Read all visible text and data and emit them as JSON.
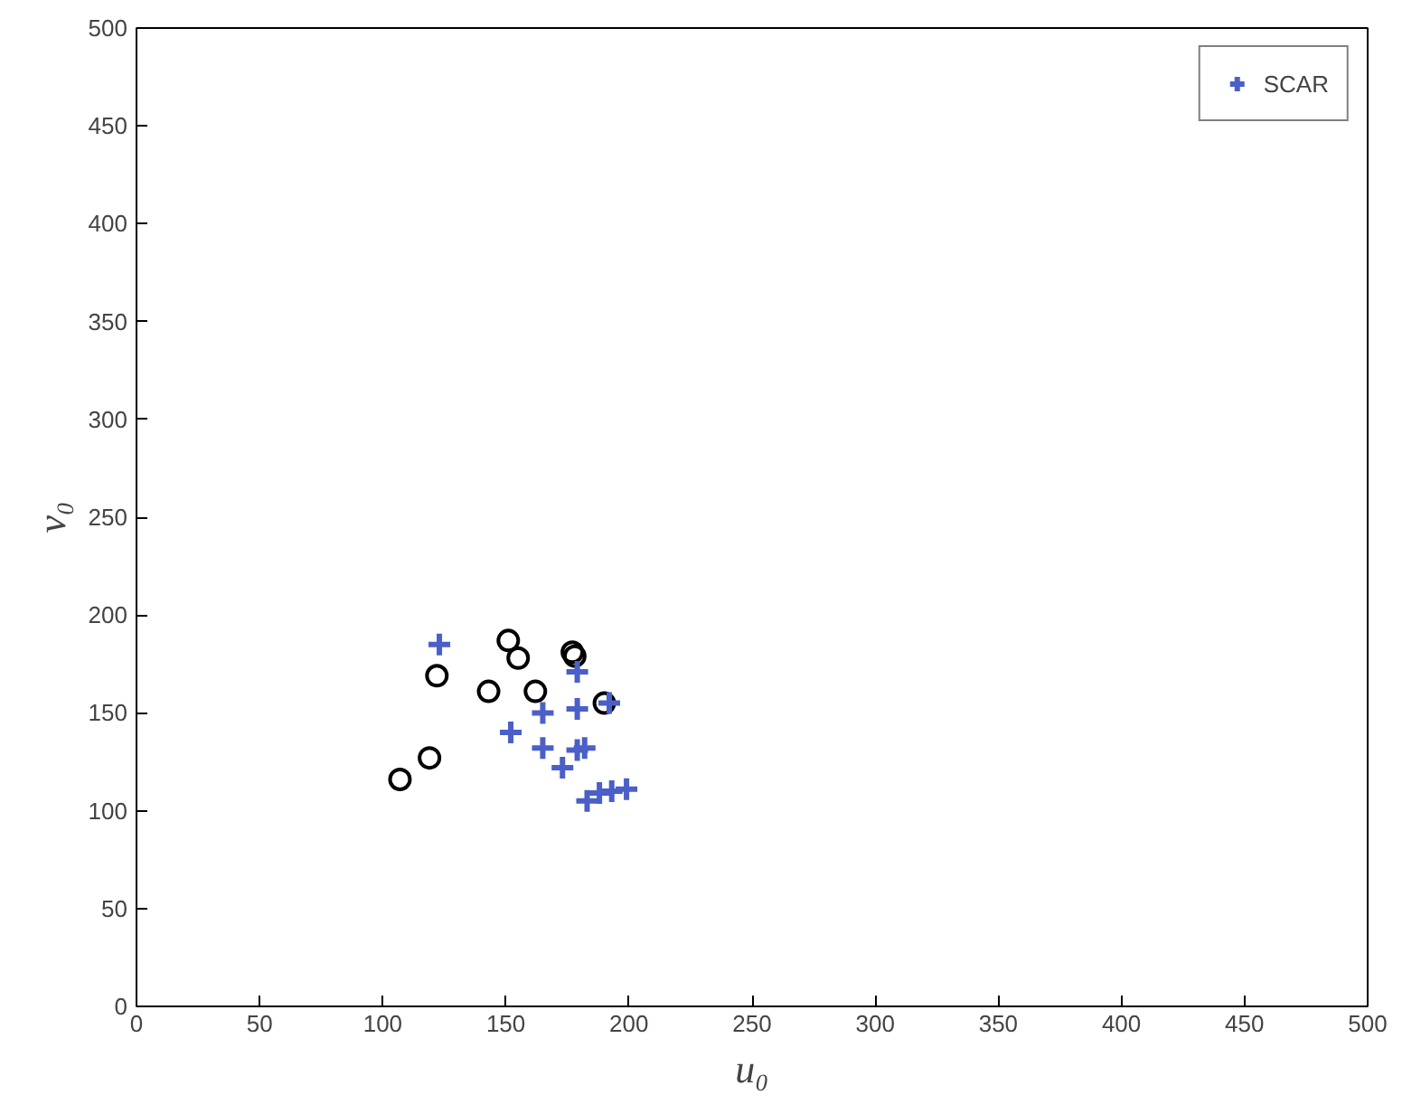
{
  "chart_data": {
    "type": "scatter",
    "xlabel": "u₀",
    "ylabel": "v₀",
    "xlim": [
      0,
      500
    ],
    "ylim": [
      0,
      500
    ],
    "xticks": [
      0,
      50,
      100,
      150,
      200,
      250,
      300,
      350,
      400,
      450,
      500
    ],
    "yticks": [
      0,
      50,
      100,
      150,
      200,
      250,
      300,
      350,
      400,
      450,
      500
    ],
    "grid": false,
    "legend": "top right",
    "series": [
      {
        "color": "#000000",
        "marker": "circle",
        "x": [
          107,
          119,
          122,
          143,
          151,
          155,
          162,
          177,
          178,
          190
        ],
        "values": [
          116,
          127,
          169,
          161,
          187,
          178,
          161,
          181,
          179,
          155
        ]
      },
      {
        "name": "SCAR",
        "color": "#4a5fc8",
        "marker": "cross",
        "x": [
          123,
          179,
          165,
          179,
          192,
          152,
          165,
          179,
          182,
          173,
          183,
          188,
          193,
          199
        ],
        "values": [
          185,
          171,
          150,
          152,
          155,
          140,
          132,
          131,
          132,
          122,
          105,
          109,
          110,
          111
        ]
      }
    ]
  }
}
